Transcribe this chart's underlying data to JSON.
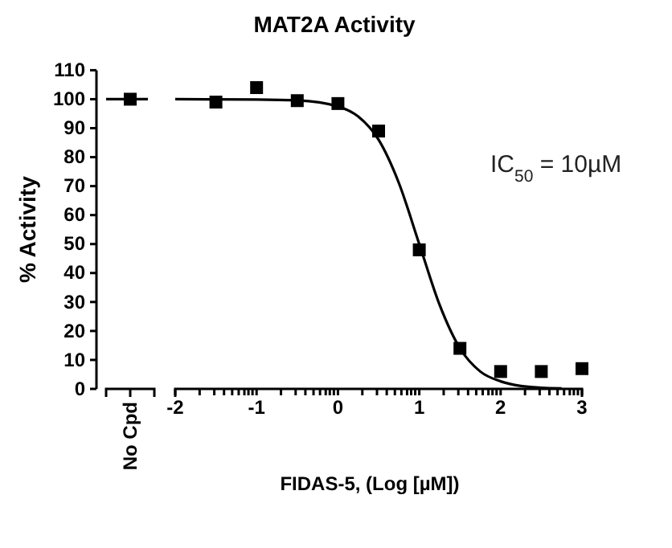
{
  "chart_data": [
    {
      "type": "scatter",
      "ylabel": "% Activity",
      "categories": [
        "No Cpd"
      ],
      "ylim": [
        0,
        110
      ],
      "yticks": [
        0,
        10,
        20,
        30,
        40,
        50,
        60,
        70,
        80,
        90,
        100,
        110
      ],
      "marker": "square",
      "ref_lines": [
        {
          "axis": "y",
          "value": 100,
          "color": "#000000"
        }
      ],
      "series": [
        {
          "color": "#000000",
          "values": [
            100
          ]
        }
      ]
    },
    {
      "type": "scatter",
      "title": "MAT2A Activity",
      "xlabel": "FIDAS-5, (Log [µM])",
      "annotations": [
        "IC$_{50}$ = 10µM"
      ],
      "xlim": [
        -2,
        3
      ],
      "ylim": [
        0,
        110
      ],
      "tick_labels": "x",
      "marker": "square",
      "xticks": [
        -2,
        {
          "value": -1.7,
          "label": null
        },
        {
          "value": -1.52,
          "label": null
        },
        {
          "value": -1.4,
          "label": null
        },
        {
          "value": -1.3,
          "label": null
        },
        {
          "value": -1.22,
          "label": null
        },
        {
          "value": -1.15,
          "label": null
        },
        {
          "value": -1.1,
          "label": null
        },
        {
          "value": -1.05,
          "label": null
        },
        -1,
        {
          "value": -0.7,
          "label": null
        },
        {
          "value": -0.52,
          "label": null
        },
        {
          "value": -0.4,
          "label": null
        },
        {
          "value": -0.3,
          "label": null
        },
        {
          "value": -0.22,
          "label": null
        },
        {
          "value": -0.15,
          "label": null
        },
        {
          "value": -0.1,
          "label": null
        },
        {
          "value": -0.05,
          "label": null
        },
        0,
        {
          "value": 0.3,
          "label": null
        },
        {
          "value": 0.48,
          "label": null
        },
        {
          "value": 0.6,
          "label": null
        },
        {
          "value": 0.7,
          "label": null
        },
        {
          "value": 0.78,
          "label": null
        },
        {
          "value": 0.85,
          "label": null
        },
        {
          "value": 0.9,
          "label": null
        },
        {
          "value": 0.95,
          "label": null
        },
        1,
        {
          "value": 1.3,
          "label": null
        },
        {
          "value": 1.48,
          "label": null
        },
        {
          "value": 1.6,
          "label": null
        },
        {
          "value": 1.7,
          "label": null
        },
        {
          "value": 1.78,
          "label": null
        },
        {
          "value": 1.85,
          "label": null
        },
        {
          "value": 1.9,
          "label": null
        },
        {
          "value": 1.95,
          "label": null
        },
        2,
        {
          "value": 2.3,
          "label": null
        },
        {
          "value": 2.48,
          "label": null
        },
        {
          "value": 2.6,
          "label": null
        },
        {
          "value": 2.7,
          "label": null
        },
        {
          "value": 2.78,
          "label": null
        },
        {
          "value": 2.85,
          "label": null
        },
        {
          "value": 2.9,
          "label": null
        },
        {
          "value": 2.95,
          "label": null
        },
        3
      ],
      "series": [
        {
          "color": "#000000",
          "x": [
            -1.5,
            -1,
            -0.5,
            0,
            0.5,
            1,
            1.5,
            2,
            2.5,
            3
          ],
          "values": [
            99,
            104,
            99.5,
            98.5,
            89,
            48,
            14,
            6,
            6,
            7
          ]
        },
        {
          "type": "line",
          "color": "#000000",
          "marker": "none",
          "x": [
            -2,
            -1,
            -0.5,
            0,
            0.25,
            0.5,
            0.75,
            1,
            1.25,
            1.5,
            1.75,
            2,
            2.25,
            2.5,
            2.75
          ],
          "values": [
            100,
            99.9,
            99.6,
            97.5,
            94,
            86,
            71,
            50,
            29,
            14,
            6,
            2.6,
            1,
            0.4,
            0.2
          ]
        }
      ]
    }
  ]
}
